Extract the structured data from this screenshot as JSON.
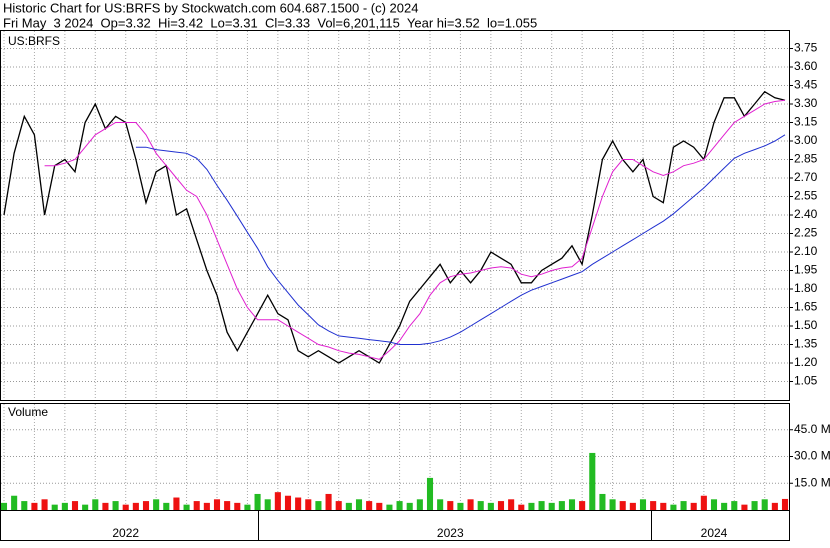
{
  "chart_data": [
    {
      "type": "line",
      "title": "Historic Chart for US:BRFS by Stockwatch.com 604.687.1500 - (c) 2024",
      "subtitle": "Fri May  3 2024  Op=3.32  Hi=3.42  Lo=3.31  Cl=3.33  Vol=6,201,115  Year hi=3.52  lo=1.055",
      "label": "US:BRFS",
      "categories": [
        null,
        null,
        null,
        null,
        null,
        null,
        null,
        null,
        null,
        null,
        null,
        null,
        "2022",
        null,
        null,
        null,
        null,
        null,
        null,
        null,
        null,
        null,
        null,
        null,
        null,
        null,
        null,
        null,
        null,
        null,
        null,
        null,
        null,
        null,
        null,
        null,
        null,
        null,
        null,
        null,
        null,
        null,
        null,
        null,
        "2023",
        null,
        null,
        null,
        null,
        null,
        null,
        null,
        null,
        null,
        null,
        null,
        null,
        null,
        null,
        null,
        null,
        null,
        null,
        null,
        null,
        null,
        null,
        null,
        null,
        null,
        "2024",
        null,
        null,
        null,
        null,
        null,
        null,
        null
      ],
      "series": [
        {
          "color": "#000000",
          "values": [
            2.4,
            2.9,
            3.2,
            3.05,
            2.4,
            2.8,
            2.85,
            2.75,
            3.15,
            3.3,
            3.1,
            3.2,
            3.15,
            2.85,
            2.5,
            2.75,
            2.8,
            2.4,
            2.45,
            2.2,
            1.95,
            1.75,
            1.45,
            1.3,
            1.45,
            1.6,
            1.75,
            1.6,
            1.55,
            1.3,
            1.25,
            1.3,
            1.25,
            1.2,
            1.25,
            1.3,
            1.25,
            1.2,
            1.35,
            1.5,
            1.7,
            1.8,
            1.9,
            2.0,
            1.85,
            1.95,
            1.85,
            1.95,
            2.1,
            2.05,
            2.0,
            1.85,
            1.85,
            1.95,
            2.0,
            2.05,
            2.15,
            2.0,
            2.4,
            2.85,
            3.0,
            2.85,
            2.75,
            2.85,
            2.55,
            2.5,
            2.95,
            3.0,
            2.95,
            2.85,
            3.15,
            3.35,
            3.35,
            3.2,
            3.3,
            3.4,
            3.35,
            3.33
          ]
        },
        {
          "color": "#e020d0",
          "values": [
            null,
            null,
            null,
            null,
            2.8,
            2.8,
            2.82,
            2.85,
            2.95,
            3.05,
            3.1,
            3.15,
            3.15,
            3.15,
            3.05,
            2.9,
            2.8,
            2.7,
            2.6,
            2.55,
            2.4,
            2.2,
            2.0,
            1.8,
            1.65,
            1.55,
            1.55,
            1.55,
            1.5,
            1.45,
            1.4,
            1.35,
            1.33,
            1.3,
            1.28,
            1.27,
            1.25,
            1.23,
            1.3,
            1.38,
            1.5,
            1.6,
            1.75,
            1.85,
            1.9,
            1.92,
            1.93,
            1.95,
            1.97,
            1.98,
            1.97,
            1.92,
            1.9,
            1.92,
            1.95,
            1.97,
            1.98,
            2.05,
            2.3,
            2.55,
            2.75,
            2.85,
            2.85,
            2.8,
            2.75,
            2.72,
            2.75,
            2.8,
            2.82,
            2.85,
            2.95,
            3.05,
            3.15,
            3.2,
            3.25,
            3.3,
            3.32,
            3.33
          ]
        },
        {
          "color": "#2030d0",
          "values": [
            null,
            null,
            null,
            null,
            null,
            null,
            null,
            null,
            null,
            null,
            null,
            null,
            null,
            2.95,
            2.95,
            2.93,
            2.92,
            2.91,
            2.9,
            2.86,
            2.77,
            2.64,
            2.52,
            2.39,
            2.26,
            2.13,
            1.98,
            1.87,
            1.77,
            1.67,
            1.59,
            1.51,
            1.46,
            1.42,
            1.41,
            1.4,
            1.39,
            1.38,
            1.37,
            1.35,
            1.35,
            1.35,
            1.36,
            1.38,
            1.41,
            1.45,
            1.5,
            1.55,
            1.6,
            1.65,
            1.7,
            1.75,
            1.79,
            1.82,
            1.85,
            1.88,
            1.91,
            1.94,
            2.0,
            2.05,
            2.1,
            2.15,
            2.2,
            2.25,
            2.3,
            2.35,
            2.41,
            2.48,
            2.55,
            2.62,
            2.7,
            2.78,
            2.86,
            2.9,
            2.93,
            2.96,
            3.0,
            3.05
          ]
        }
      ],
      "ylim": [
        0.9,
        3.9
      ],
      "yticks": [
        3.75,
        {
          "value": 3.6,
          "label": "3.60"
        },
        3.45,
        {
          "value": 3.3,
          "label": "3.30"
        },
        3.15,
        {
          "value": 3.0,
          "label": "3.00"
        },
        2.85,
        {
          "value": 2.7,
          "label": "2.70"
        },
        2.55,
        {
          "value": 2.4,
          "label": "2.40"
        },
        2.25,
        {
          "value": 2.1,
          "label": "2.10"
        },
        1.95,
        {
          "value": 1.8,
          "label": "1.80"
        },
        1.65,
        {
          "value": 1.5,
          "label": "1.50"
        },
        1.35,
        {
          "value": 1.2,
          "label": "1.20"
        },
        1.05
      ],
      "grid": true
    },
    {
      "type": "bar",
      "label": "Volume",
      "values": [
        4000000,
        8000000,
        5000000,
        4000000,
        6000000,
        3000000,
        4000000,
        5000000,
        3000000,
        6000000,
        4000000,
        5000000,
        3000000,
        4000000,
        5000000,
        6000000,
        4000000,
        7000000,
        3000000,
        5000000,
        4000000,
        6000000,
        5000000,
        4000000,
        3000000,
        9000000,
        6000000,
        10000000,
        8000000,
        7000000,
        6000000,
        5000000,
        9000000,
        5000000,
        4000000,
        6000000,
        5000000,
        4000000,
        3000000,
        5000000,
        4000000,
        6000000,
        18000000,
        6000000,
        5000000,
        4000000,
        6000000,
        5000000,
        4000000,
        5000000,
        6000000,
        3000000,
        4000000,
        5000000,
        4000000,
        5000000,
        6000000,
        5000000,
        32000000,
        9000000,
        6000000,
        5000000,
        4000000,
        6000000,
        5000000,
        4000000,
        3000000,
        5000000,
        4000000,
        8000000,
        6000000,
        4000000,
        5000000,
        3000000,
        5000000,
        6000000,
        4000000,
        6201115
      ],
      "up_color": "#22bb22",
      "down_color": "#ee1111",
      "ylim": [
        0,
        60000000
      ],
      "yticks": [
        {
          "value": 15000000,
          "label": "15.0 M"
        },
        {
          "value": 30000000,
          "label": "30.0 M"
        },
        {
          "value": 45000000,
          "label": "45.0 M"
        }
      ],
      "grid": true
    }
  ]
}
